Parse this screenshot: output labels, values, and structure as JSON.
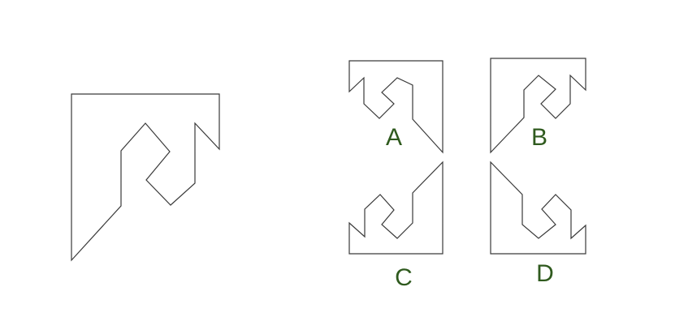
{
  "colors": {
    "stroke": "#3a3a3a",
    "label": "#2f5a1e",
    "background": "#ffffff"
  },
  "options": [
    {
      "id": "a",
      "label": "A"
    },
    {
      "id": "b",
      "label": "B"
    },
    {
      "id": "c",
      "label": "C"
    },
    {
      "id": "d",
      "label": "D"
    }
  ]
}
